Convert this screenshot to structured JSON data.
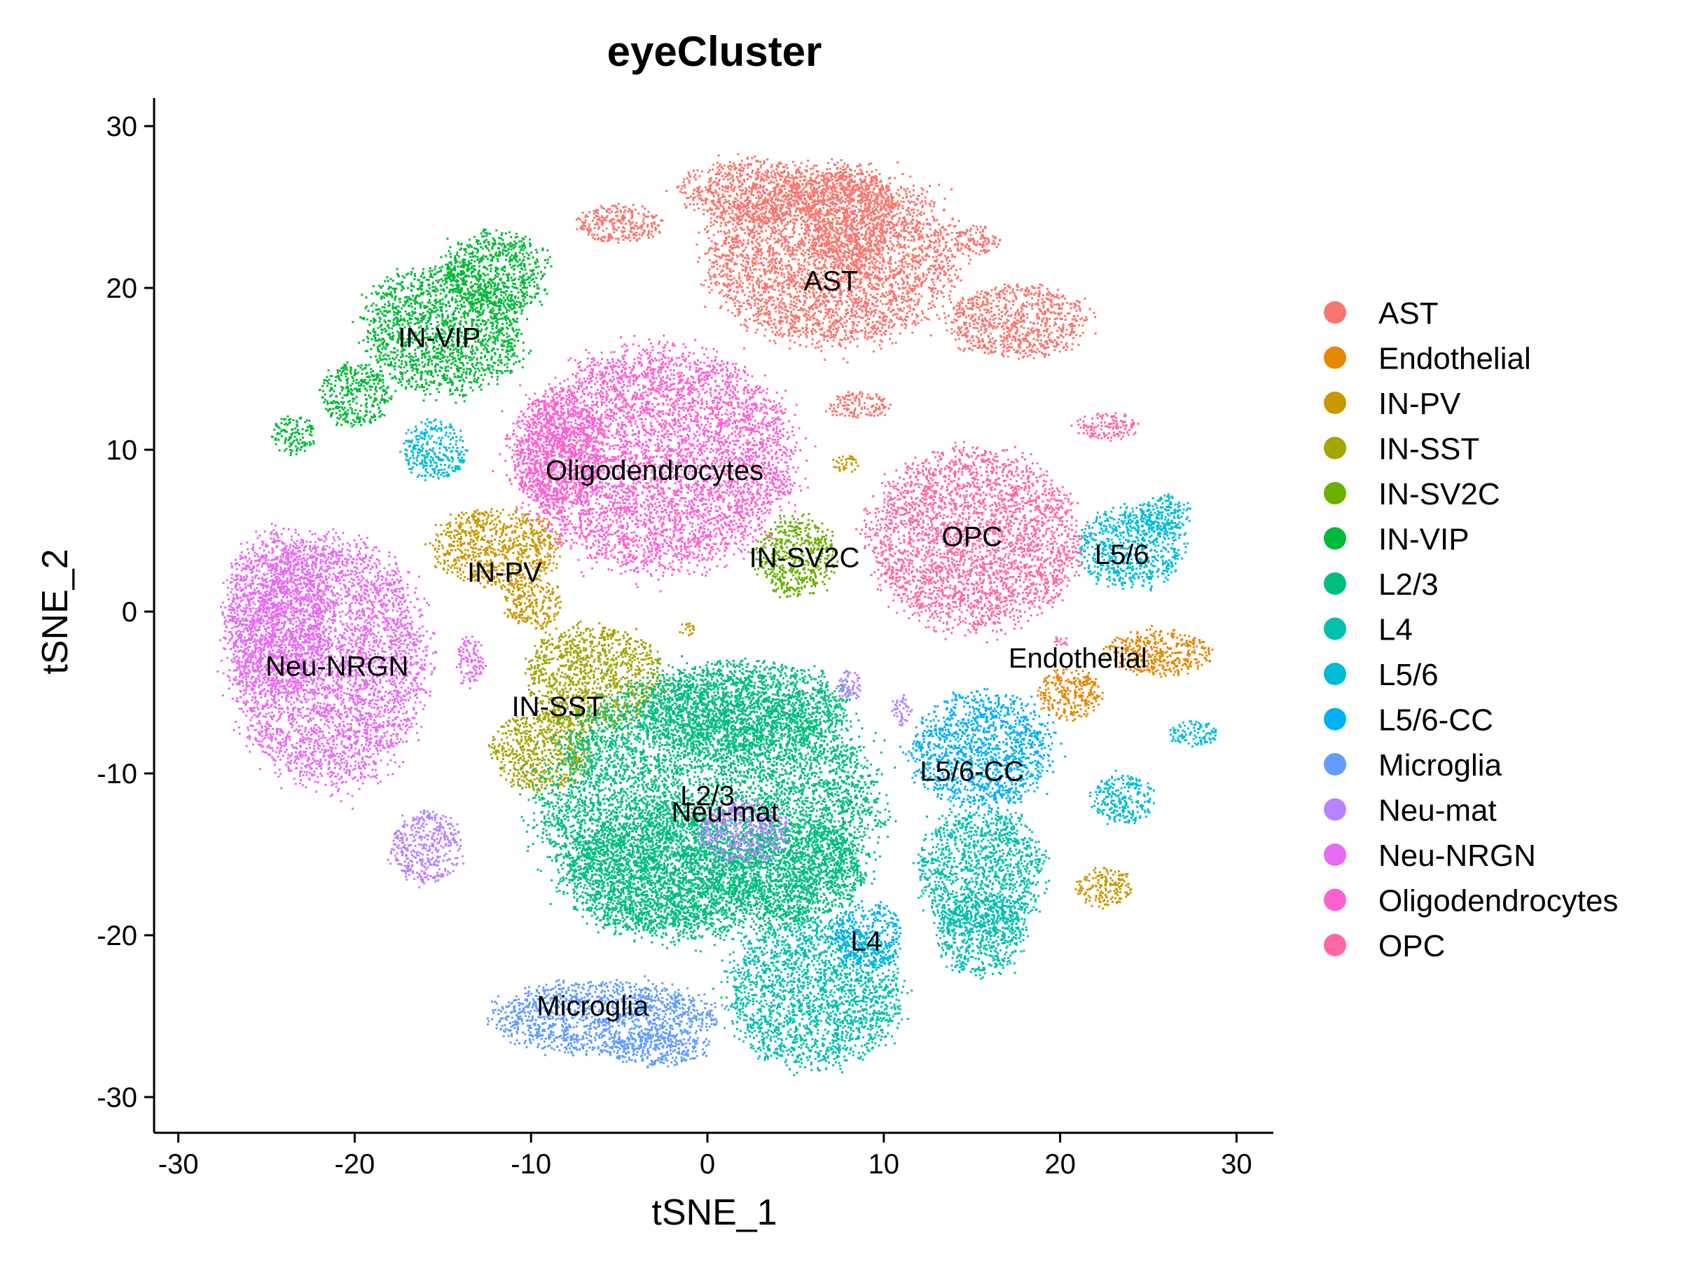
{
  "chart_data": {
    "type": "scatter",
    "title": "eyeCluster",
    "xlabel": "tSNE_1",
    "ylabel": "tSNE_2",
    "xlim": [
      -31.5,
      32
    ],
    "ylim": [
      -32.2,
      31.6
    ],
    "xticks": [
      -30,
      -20,
      -10,
      0,
      10,
      20,
      30
    ],
    "yticks": [
      -30,
      -20,
      -10,
      0,
      10,
      20,
      30
    ],
    "grid": false,
    "legend_position": "right",
    "series": [
      {
        "name": "AST",
        "color": "#F8766D",
        "label": "AST",
        "label_at": [
          7,
          20.3
        ],
        "blobs": [
          [
            7,
            22,
            7,
            5.5
          ],
          [
            8,
            24.5,
            2.5,
            3.2
          ],
          [
            -5,
            24,
            2.5,
            1.2
          ],
          [
            2.5,
            26,
            4,
            2
          ],
          [
            17.5,
            18,
            4,
            2.2
          ],
          [
            15.2,
            23,
            1.3,
            0.9
          ],
          [
            8.5,
            12.8,
            1.8,
            0.8
          ]
        ]
      },
      {
        "name": "Endothelial",
        "color": "#E58700",
        "label": "Endothelial",
        "label_at": [
          21,
          -3
        ],
        "blobs": [
          [
            25.5,
            -2.5,
            3,
            1.4
          ],
          [
            20.5,
            -5,
            1.8,
            1.6
          ]
        ]
      },
      {
        "name": "IN-PV",
        "color": "#C99800",
        "label": "IN-PV",
        "label_at": [
          -11.5,
          2.3
        ],
        "blobs": [
          [
            -12,
            4,
            3.6,
            2.4
          ],
          [
            -10,
            0.6,
            1.6,
            1.6
          ],
          [
            22.5,
            -17,
            1.6,
            1.2
          ],
          [
            7.8,
            9.2,
            0.8,
            0.5
          ],
          [
            -1.2,
            -1,
            0.4,
            0.5
          ]
        ]
      },
      {
        "name": "IN-SST",
        "color": "#A3A500",
        "label": "IN-SST",
        "label_at": [
          -8.5,
          -6
        ],
        "blobs": [
          [
            -6.5,
            -4,
            3.8,
            3.2
          ],
          [
            -9.5,
            -8.5,
            2.8,
            2.5
          ]
        ]
      },
      {
        "name": "IN-SV2C",
        "color": "#6BB100",
        "label": "IN-SV2C",
        "label_at": [
          5.5,
          3.2
        ],
        "blobs": [
          [
            5,
            3.5,
            2.2,
            2.5
          ]
        ]
      },
      {
        "name": "IN-VIP",
        "color": "#00BA38",
        "label": "IN-VIP",
        "label_at": [
          -15.2,
          16.8
        ],
        "blobs": [
          [
            -15,
            17.5,
            4.5,
            4
          ],
          [
            -12,
            21,
            3,
            2.5
          ],
          [
            -23.5,
            11,
            1.2,
            1.2
          ],
          [
            -20,
            13.5,
            2,
            2
          ]
        ]
      },
      {
        "name": "L2/3",
        "color": "#00BF7D",
        "label": "L2/3",
        "label_at": [
          0,
          -11.5
        ],
        "blobs": [
          [
            0,
            -12,
            9.5,
            8
          ],
          [
            2,
            -6,
            6,
            3
          ],
          [
            5,
            -16,
            4,
            3
          ],
          [
            -3,
            -16,
            5,
            4
          ]
        ]
      },
      {
        "name": "L4",
        "color": "#00C0AF",
        "label": "L4",
        "label_at": [
          9,
          -20.5
        ],
        "blobs": [
          [
            6,
            -23.5,
            5,
            4.5
          ],
          [
            15.5,
            -16,
            3.5,
            4
          ],
          [
            15.5,
            -20,
            2.5,
            2.5
          ]
        ]
      },
      {
        "name": "L5/6",
        "color": "#00BCD8",
        "label": "L5/6",
        "label_at": [
          23.5,
          3.4
        ],
        "blobs": [
          [
            24,
            4,
            3,
            2.5
          ],
          [
            26,
            6,
            1.5,
            1.2
          ],
          [
            27.5,
            -7.5,
            1.4,
            0.8
          ],
          [
            23.5,
            -11.5,
            1.8,
            1.5
          ],
          [
            -15.5,
            10,
            1.8,
            1.8
          ]
        ]
      },
      {
        "name": "L5/6-CC",
        "color": "#00B0F6",
        "label": "L5/6-CC",
        "label_at": [
          15,
          -10
        ],
        "blobs": [
          [
            15.5,
            -8.5,
            4,
            3.5
          ],
          [
            9,
            -20,
            2,
            2
          ]
        ]
      },
      {
        "name": "Microglia",
        "color": "#619CFF",
        "label": "Microglia",
        "label_at": [
          -6.5,
          -24.5
        ],
        "blobs": [
          [
            -6,
            -25,
            6.5,
            2.2
          ],
          [
            -3,
            -27,
            3,
            1
          ]
        ]
      },
      {
        "name": "Neu-mat",
        "color": "#B983FF",
        "label": "Neu-mat",
        "label_at": [
          1,
          -12.5
        ],
        "blobs": [
          [
            2,
            -13.5,
            2.5,
            2
          ],
          [
            -16,
            -14.5,
            2,
            2.2
          ],
          [
            8,
            -4.5,
            0.7,
            1
          ],
          [
            11,
            -6,
            0.5,
            1
          ]
        ]
      },
      {
        "name": "Neu-NRGN",
        "color": "#E76BF3",
        "label": "Neu-NRGN",
        "label_at": [
          -21,
          -3.5
        ],
        "blobs": [
          [
            -21.5,
            -3,
            5.5,
            7.5
          ],
          [
            -24.5,
            0,
            3,
            5
          ],
          [
            -13.5,
            -3,
            0.8,
            1.5
          ]
        ]
      },
      {
        "name": "Oligodendrocytes",
        "color": "#FD61D1",
        "label": "Oligodendrocytes",
        "label_at": [
          -3,
          8.6
        ],
        "blobs": [
          [
            -3,
            9.5,
            7.8,
            6.8
          ],
          [
            -8.5,
            10,
            2.5,
            3.5
          ]
        ]
      },
      {
        "name": "OPC",
        "color": "#FF67A4",
        "label": "OPC",
        "label_at": [
          15,
          4.5
        ],
        "blobs": [
          [
            15,
            4.5,
            5.8,
            5.5
          ],
          [
            22.5,
            11.5,
            1.8,
            0.8
          ],
          [
            20,
            -1.8,
            0.4,
            0.4
          ]
        ]
      }
    ]
  }
}
